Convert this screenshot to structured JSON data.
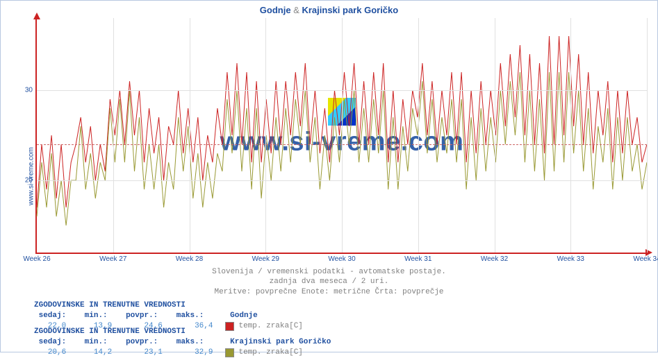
{
  "site_label": "www.si-vreme.com",
  "title": {
    "a": "Godnje",
    "amp": "&",
    "b": "Krajinski park Goričko"
  },
  "watermark": "www.si-vreme.com",
  "chart": {
    "type": "line",
    "background_color": "#ffffff",
    "grid_color": "#e0e0e0",
    "axis_color": "#cc2222",
    "reference_line_color": "#cc6666",
    "label_color": "#2050a0",
    "label_fontsize": 10,
    "title_fontsize": 13,
    "ylim": [
      12,
      38
    ],
    "y_ticks": [
      20,
      30
    ],
    "reference_y": 24,
    "x_categories": [
      "Week 26",
      "Week 27",
      "Week 28",
      "Week 29",
      "Week 30",
      "Week 31",
      "Week 32",
      "Week 33",
      "Week 34"
    ],
    "line_width": 1,
    "series": [
      {
        "name": "Godnje",
        "color": "#cc2222",
        "variable": "temp. zraka[C]",
        "values": [
          17,
          24,
          19,
          25,
          18,
          24,
          17,
          22,
          24,
          27,
          22,
          26,
          20,
          24,
          21,
          29,
          25,
          30,
          24,
          31,
          25,
          30,
          22,
          28,
          23,
          27,
          20,
          26,
          24,
          30,
          23,
          28,
          22,
          27,
          20,
          25,
          22,
          28,
          24,
          32,
          25,
          33,
          24,
          32,
          22,
          31,
          22,
          29,
          23,
          31,
          24,
          31,
          25,
          32,
          26,
          33,
          24,
          30,
          23,
          28,
          22,
          30,
          25,
          32,
          26,
          33,
          24,
          31,
          24,
          32,
          25,
          33,
          22,
          30,
          22,
          29,
          24,
          30,
          27,
          33,
          25,
          31,
          24,
          30,
          25,
          32,
          24,
          32,
          22,
          30,
          23,
          31,
          24,
          30,
          25,
          33,
          26,
          34,
          27,
          35,
          25,
          34,
          24,
          33,
          23,
          36,
          24,
          36,
          25,
          36,
          26,
          34,
          24,
          32,
          23,
          30,
          25,
          31,
          22,
          30,
          23,
          30,
          24,
          27,
          22,
          24
        ]
      },
      {
        "name": "Krajinski park Goričko",
        "color": "#999933",
        "variable": "temp. zraka[C]",
        "values": [
          16,
          22,
          17,
          23,
          16,
          20,
          15,
          20,
          20,
          26,
          19,
          23,
          18,
          22,
          20,
          28,
          22,
          29,
          22,
          30,
          21,
          27,
          19,
          24,
          19,
          24,
          17,
          22,
          19,
          27,
          21,
          26,
          18,
          23,
          17,
          22,
          18,
          23,
          21,
          29,
          23,
          30,
          21,
          28,
          19,
          28,
          18,
          25,
          20,
          27,
          21,
          28,
          22,
          29,
          24,
          30,
          22,
          27,
          19,
          25,
          20,
          27,
          22,
          29,
          24,
          30,
          22,
          28,
          22,
          29,
          23,
          30,
          19,
          27,
          19,
          26,
          21,
          28,
          25,
          31,
          23,
          29,
          22,
          27,
          23,
          29,
          22,
          29,
          19,
          27,
          20,
          28,
          21,
          27,
          22,
          30,
          24,
          31,
          25,
          32,
          22,
          30,
          21,
          29,
          20,
          32,
          21,
          32,
          22,
          32,
          23,
          30,
          21,
          28,
          19,
          26,
          22,
          28,
          19,
          27,
          20,
          27,
          21,
          24,
          19,
          22
        ]
      }
    ]
  },
  "caption": {
    "line1": "Slovenija / vremenski podatki - avtomatske postaje.",
    "line2": "zadnja dva meseca / 2 uri.",
    "line3": "Meritve: povprečne  Enote: metrične  Črta: povprečje"
  },
  "stats": [
    {
      "header": "ZGODOVINSKE IN TRENUTNE VREDNOSTI",
      "labels": {
        "sedaj": "sedaj:",
        "min": "min.:",
        "povpr": "povpr.:",
        "maks": "maks.:"
      },
      "values": {
        "sedaj": "22,0",
        "min": "13,9",
        "povpr": "24,6",
        "maks": "36,4"
      },
      "series_name": "Godnje",
      "swatch": "red",
      "variable": "temp. zraka[C]"
    },
    {
      "header": "ZGODOVINSKE IN TRENUTNE VREDNOSTI",
      "labels": {
        "sedaj": "sedaj:",
        "min": "min.:",
        "povpr": "povpr.:",
        "maks": "maks.:"
      },
      "values": {
        "sedaj": "20,6",
        "min": "14,2",
        "povpr": "23,1",
        "maks": "32,9"
      },
      "series_name": "Krajinski park Goričko",
      "swatch": "olive",
      "variable": "temp. zraka[C]"
    }
  ]
}
